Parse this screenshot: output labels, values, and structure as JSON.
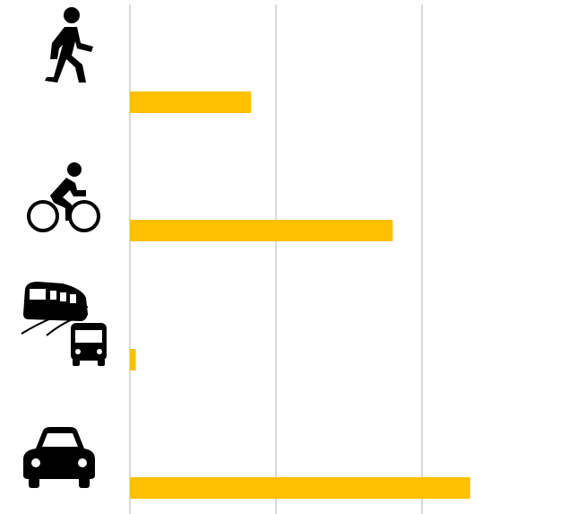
{
  "chart_data": {
    "type": "bar",
    "orientation": "horizontal",
    "categories": [
      null,
      null,
      null,
      null
    ],
    "values": [
      0.83,
      1.8,
      0.04,
      2.33
    ],
    "color": "#ffc000",
    "xlim": [
      0,
      3
    ],
    "xticks": [
      0,
      1,
      2
    ],
    "grid": true
  }
}
